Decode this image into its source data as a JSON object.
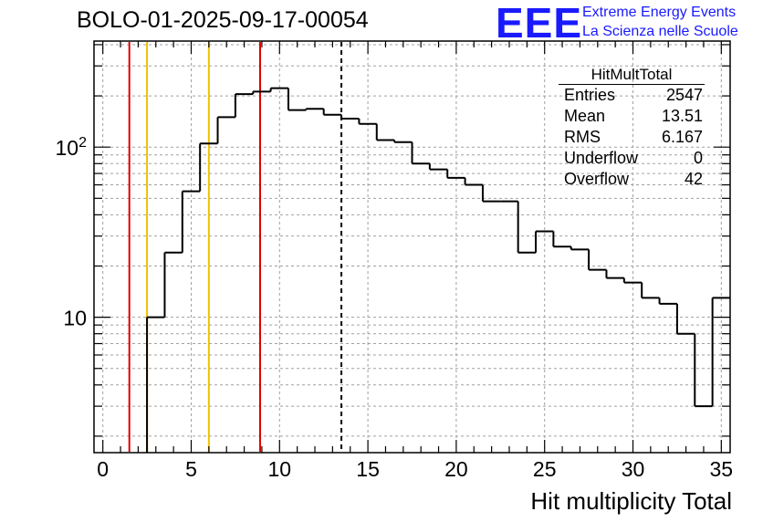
{
  "run_title": "BOLO-01-2025-09-17-00054",
  "logo": {
    "mark": "EEE",
    "line1": "Extreme Energy Events",
    "line2": "La Scienza nelle Scuole",
    "color": "#1a1aff"
  },
  "stats_box": {
    "title": "HitMultTotal",
    "rows": [
      {
        "label": "Entries",
        "value": "2547"
      },
      {
        "label": "Mean",
        "value": "13.51"
      },
      {
        "label": "RMS",
        "value": "6.167"
      },
      {
        "label": "Underflow",
        "value": "0"
      },
      {
        "label": "Overflow",
        "value": "42"
      }
    ]
  },
  "chart_data": {
    "type": "histogram",
    "xlabel": "Hit multiplicity Total",
    "ylabel": "",
    "xlim": [
      -0.5,
      35.5
    ],
    "ylim": [
      1.6,
      420
    ],
    "y_scale": "log",
    "grid": true,
    "x_ticks": [
      0,
      5,
      10,
      15,
      20,
      25,
      30,
      35
    ],
    "y_tick_labels": [
      {
        "value": 10,
        "label": "10"
      },
      {
        "value": 100,
        "label": "10^2"
      }
    ],
    "bin_width": 1,
    "bin_lows": [
      2.5,
      3.5,
      4.5,
      5.5,
      6.5,
      7.5,
      8.5,
      9.5,
      10.5,
      11.5,
      12.5,
      13.5,
      14.5,
      15.5,
      16.5,
      17.5,
      18.5,
      19.5,
      20.5,
      21.5,
      22.5,
      23.5,
      24.5,
      25.5,
      26.5,
      27.5,
      28.5,
      29.5,
      30.5,
      31.5,
      32.5,
      33.5,
      34.5
    ],
    "values": [
      10,
      24,
      55,
      105,
      150,
      205,
      212,
      222,
      165,
      168,
      155,
      147,
      137,
      110,
      107,
      80,
      74,
      66,
      60,
      48,
      48,
      24,
      32,
      26,
      25,
      19,
      17,
      16,
      13,
      12,
      8,
      3,
      13
    ],
    "vertical_lines": [
      {
        "x": 1.5,
        "color": "#e00000",
        "style": "solid"
      },
      {
        "x": 2.5,
        "color": "#f0c000",
        "style": "solid"
      },
      {
        "x": 6.0,
        "color": "#f0c000",
        "style": "solid"
      },
      {
        "x": 8.9,
        "color": "#e00000",
        "style": "solid"
      },
      {
        "x": 13.5,
        "color": "#000000",
        "style": "dashed"
      }
    ]
  }
}
